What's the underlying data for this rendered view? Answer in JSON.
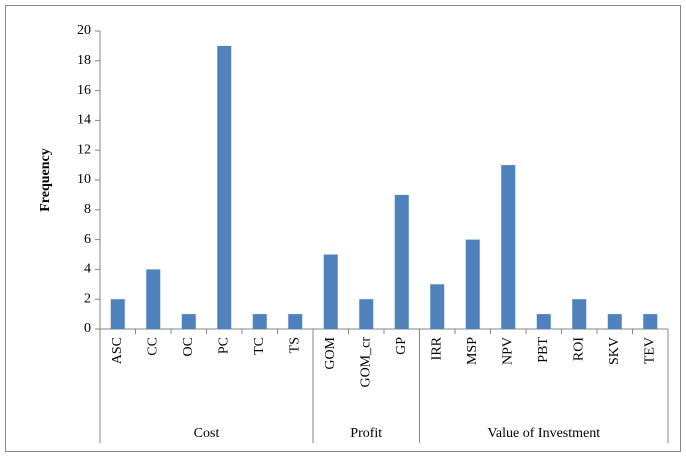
{
  "chart_data": {
    "type": "bar",
    "y_label": "Frequency",
    "color": "#4f81bd",
    "ylim": [
      0,
      20
    ],
    "yticks": [
      0,
      2,
      4,
      6,
      8,
      10,
      12,
      14,
      16,
      18,
      20
    ],
    "grid": false,
    "groups": [
      {
        "name": "Cost",
        "categories": [
          "ASC",
          "CC",
          "OC",
          "PC",
          "TC",
          "TS"
        ],
        "values": [
          2,
          4,
          1,
          19,
          1,
          1
        ]
      },
      {
        "name": "Profit",
        "categories": [
          "GOM",
          "GOM_cr",
          "GP"
        ],
        "values": [
          5,
          2,
          9
        ]
      },
      {
        "name": "Value of Investment",
        "categories": [
          "IRR",
          "MSP",
          "NPV",
          "PBT",
          "ROI",
          "SKV",
          "TEV"
        ],
        "values": [
          3,
          6,
          11,
          1,
          2,
          1,
          1
        ]
      }
    ]
  }
}
